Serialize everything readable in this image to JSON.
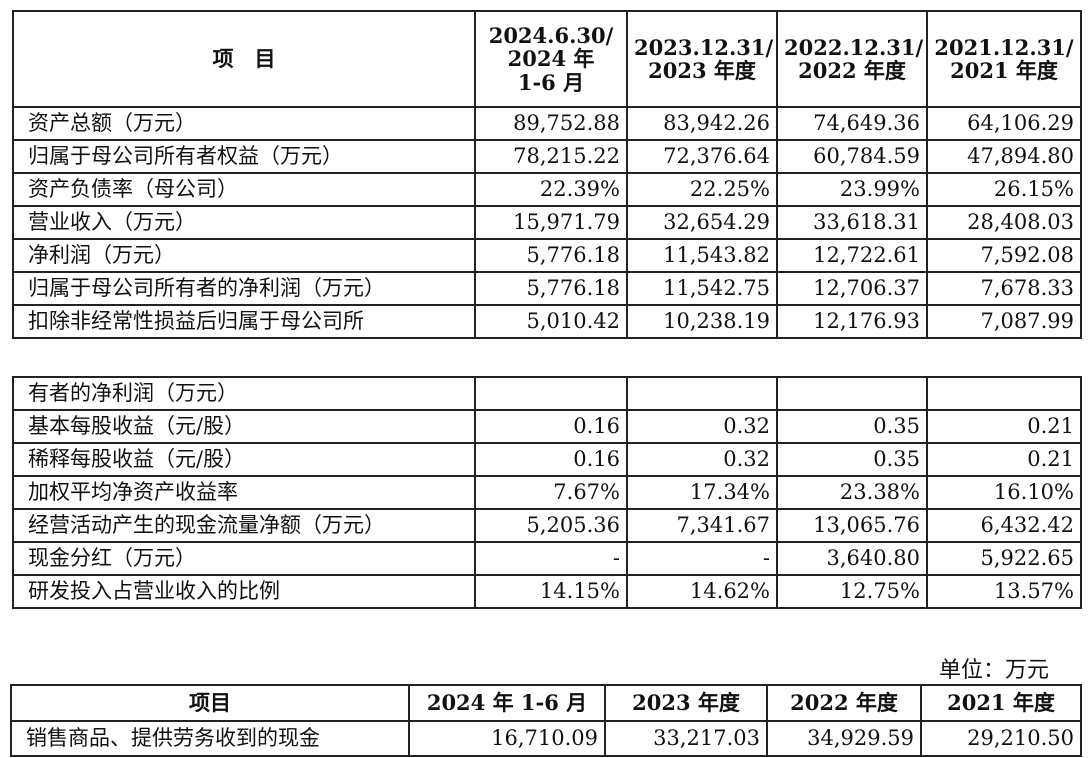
{
  "table1": {
    "headers": [
      "项　目",
      "2024.6.30/\n2024 年\n1-6 月",
      "2023.12.31/\n2023 年度",
      "2022.12.31/\n2022 年度",
      "2021.12.31/\n2021 年度"
    ],
    "rows": [
      [
        "资产总额（万元）",
        "89,752.88",
        "83,942.26",
        "74,649.36",
        "64,106.29"
      ],
      [
        "归属于母公司所有者权益（万元）",
        "78,215.22",
        "72,376.64",
        "60,784.59",
        "47,894.80"
      ],
      [
        "资产负债率（母公司）",
        "22.39%",
        "22.25%",
        "23.99%",
        "26.15%"
      ],
      [
        "营业收入（万元）",
        "15,971.79",
        "32,654.29",
        "33,618.31",
        "28,408.03"
      ],
      [
        "净利润（万元）",
        "5,776.18",
        "11,543.82",
        "12,722.61",
        "7,592.08"
      ],
      [
        "归属于母公司所有者的净利润（万元）",
        "5,776.18",
        "11,542.75",
        "12,706.37",
        "7,678.33"
      ],
      [
        "扣除非经常性损益后归属于母公司所",
        "5,010.42",
        "10,238.19",
        "12,176.93",
        "7,087.99"
      ]
    ]
  },
  "table2": {
    "rows": [
      [
        "有者的净利润（万元）",
        "",
        "",
        "",
        ""
      ],
      [
        "基本每股收益（元/股）",
        "0.16",
        "0.32",
        "0.35",
        "0.21"
      ],
      [
        "稀释每股收益（元/股）",
        "0.16",
        "0.32",
        "0.35",
        "0.21"
      ],
      [
        "加权平均净资产收益率",
        "7.67%",
        "17.34%",
        "23.38%",
        "16.10%"
      ],
      [
        "经营活动产生的现金流量净额（万元）",
        "5,205.36",
        "7,341.67",
        "13,065.76",
        "6,432.42"
      ],
      [
        "现金分红（万元）",
        "-",
        "-",
        "3,640.80",
        "5,922.65"
      ],
      [
        "研发投入占营业收入的比例",
        "14.15%",
        "14.62%",
        "12.75%",
        "13.57%"
      ]
    ]
  },
  "unit_label": "单位：万元",
  "table3": {
    "headers": [
      "项目",
      "2024 年 1-6 月",
      "2023 年度",
      "2022 年度",
      "2021 年度"
    ],
    "rows": [
      [
        "销售商品、提供劳务收到的现金",
        "16,710.09",
        "33,217.03",
        "34,929.59",
        "29,210.50"
      ]
    ]
  }
}
